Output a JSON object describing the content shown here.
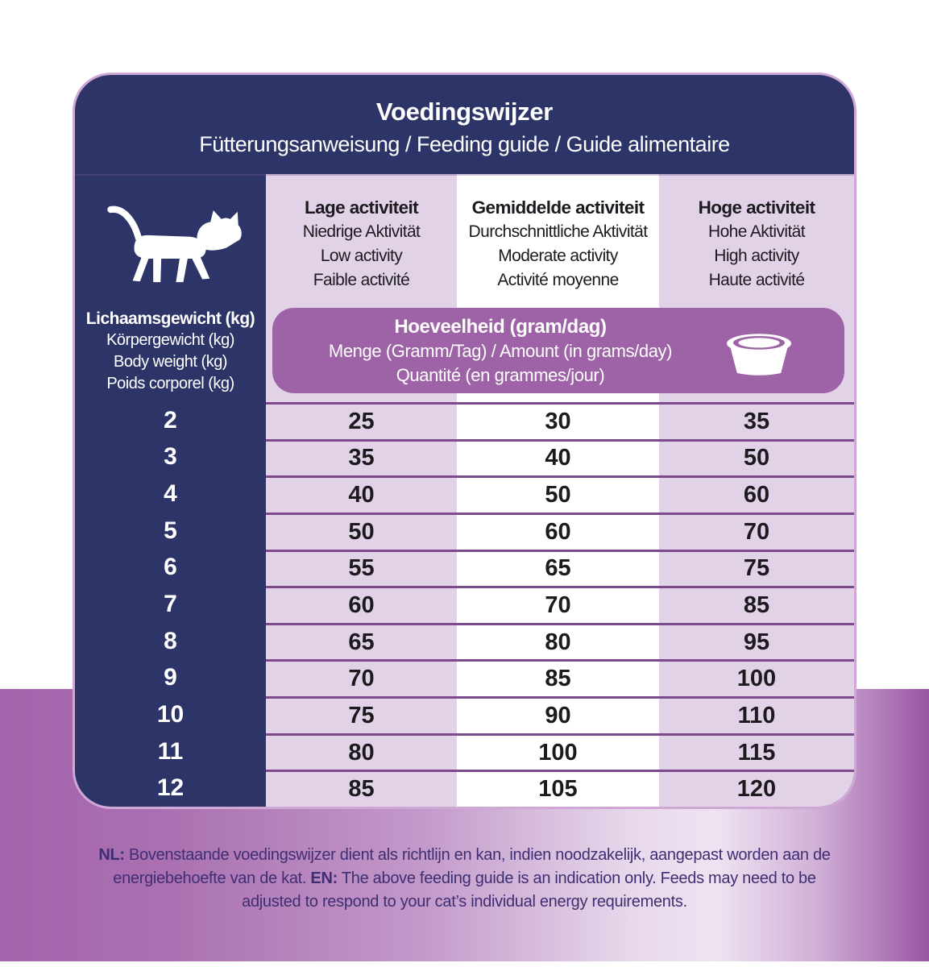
{
  "card": {
    "title": "Voedingswijzer",
    "subtitle": "Fütterungsanweisung / Feeding guide / Guide alimentaire"
  },
  "weight_column": {
    "icon": "cat-icon",
    "labels": [
      "Lichaamsgewicht (kg)",
      "Körpergewicht (kg)",
      "Body weight (kg)",
      "Poids corporel (kg)"
    ]
  },
  "activity_columns": [
    {
      "lines": [
        "Lage activiteit",
        "Niedrige Aktivität",
        "Low activity",
        "Faible activité"
      ]
    },
    {
      "lines": [
        "Gemiddelde activiteit",
        "Durchschnittliche Aktivität",
        "Moderate activity",
        "Activité moyenne"
      ]
    },
    {
      "lines": [
        "Hoge activiteit",
        "Hohe Aktivität",
        "High activity",
        "Haute activité"
      ]
    }
  ],
  "amount_banner": {
    "icon": "bowl-icon",
    "lines": [
      "Hoeveelheid (gram/dag)",
      "Menge (Gramm/Tag) / Amount (in grams/day)",
      "Quantité (en grammes/jour)"
    ]
  },
  "table": {
    "weight_header": "Body weight (kg)",
    "rows": [
      {
        "weight": "2",
        "values": [
          "25",
          "30",
          "35"
        ]
      },
      {
        "weight": "3",
        "values": [
          "35",
          "40",
          "50"
        ]
      },
      {
        "weight": "4",
        "values": [
          "40",
          "50",
          "60"
        ]
      },
      {
        "weight": "5",
        "values": [
          "50",
          "60",
          "70"
        ]
      },
      {
        "weight": "6",
        "values": [
          "55",
          "65",
          "75"
        ]
      },
      {
        "weight": "7",
        "values": [
          "60",
          "70",
          "85"
        ]
      },
      {
        "weight": "8",
        "values": [
          "65",
          "80",
          "95"
        ]
      },
      {
        "weight": "9",
        "values": [
          "70",
          "85",
          "100"
        ]
      },
      {
        "weight": "10",
        "values": [
          "75",
          "90",
          "110"
        ]
      },
      {
        "weight": "11",
        "values": [
          "80",
          "100",
          "115"
        ]
      },
      {
        "weight": "12",
        "values": [
          "85",
          "105",
          "120"
        ]
      }
    ]
  },
  "footer": {
    "nl_label": "NL:",
    "nl_text": " Bovenstaande voedingswijzer dient als richtlijn en kan, indien noodzakelijk, aangepast worden aan de energiebehoefte van de kat. ",
    "en_label": "EN:",
    "en_text": " The above feeding guide is an indication only. Feeds may need to be adjusted to respond to your cat’s individual energy requirements."
  },
  "colors": {
    "navy": "#2d3468",
    "lavender_cell": "#e1d2e8",
    "white_cell": "#ffffff",
    "row_separator": "#7c4b8e",
    "banner_purple": "#9d63a6",
    "card_border": "#cfa8d6",
    "footer_text": "#3e2e72",
    "band_gradient_edges": "#a464ac"
  }
}
